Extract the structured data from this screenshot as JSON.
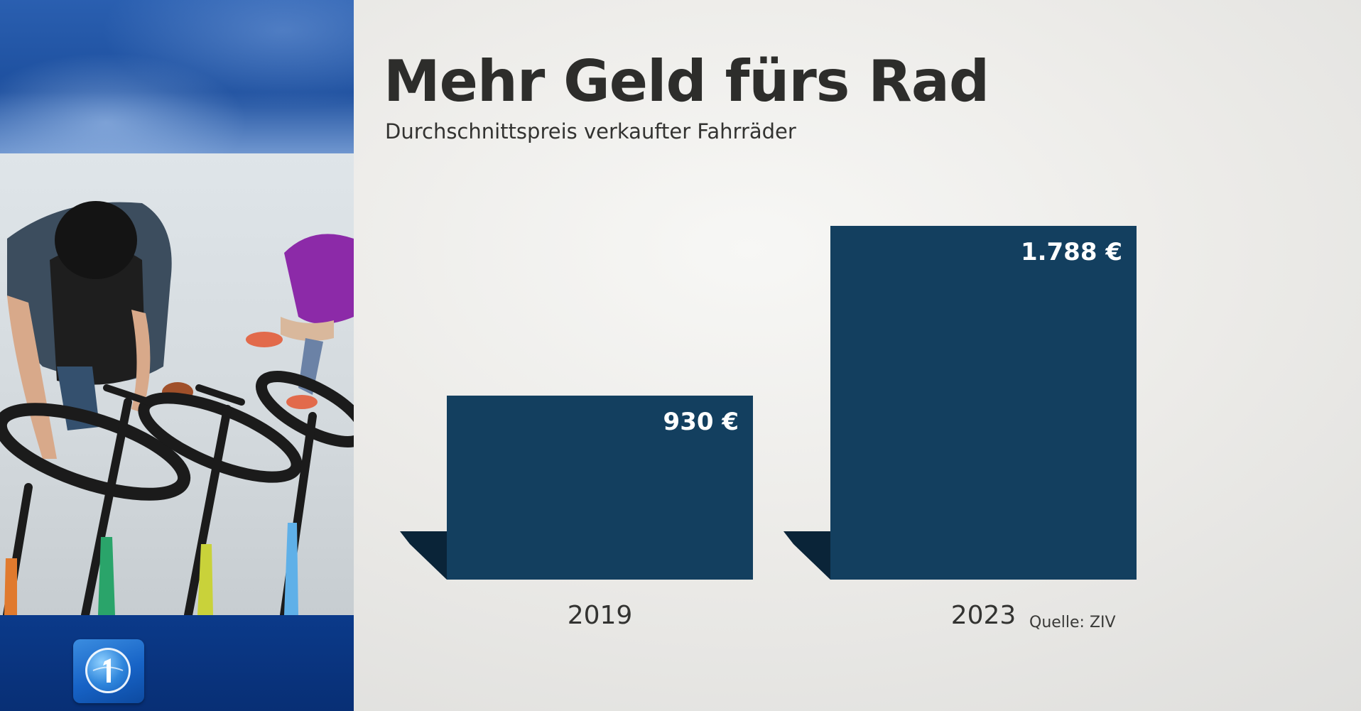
{
  "header": {
    "title": "Mehr Geld fürs Rad",
    "subtitle": "Durchschnittspreis verkaufter Fahrräder",
    "source": "Quelle: ZIV"
  },
  "branding": {
    "logo_icon": "tagesschau-logo-icon",
    "photo": "bike-shop-photo"
  },
  "colors": {
    "bar": "#133f5f",
    "bar_shadow": "#0a2438",
    "label_text": "#ffffff",
    "axis_text": "#333331"
  },
  "chart_data": {
    "type": "bar",
    "title": "Mehr Geld fürs Rad",
    "subtitle": "Durchschnittspreis verkaufter Fahrräder",
    "categories": [
      "2019",
      "2023"
    ],
    "values": [
      930,
      1788
    ],
    "value_labels": [
      "930 €",
      "1.788 €"
    ],
    "unit": "€",
    "grid": false,
    "legend": "none",
    "ylim": [
      0,
      1800
    ]
  }
}
